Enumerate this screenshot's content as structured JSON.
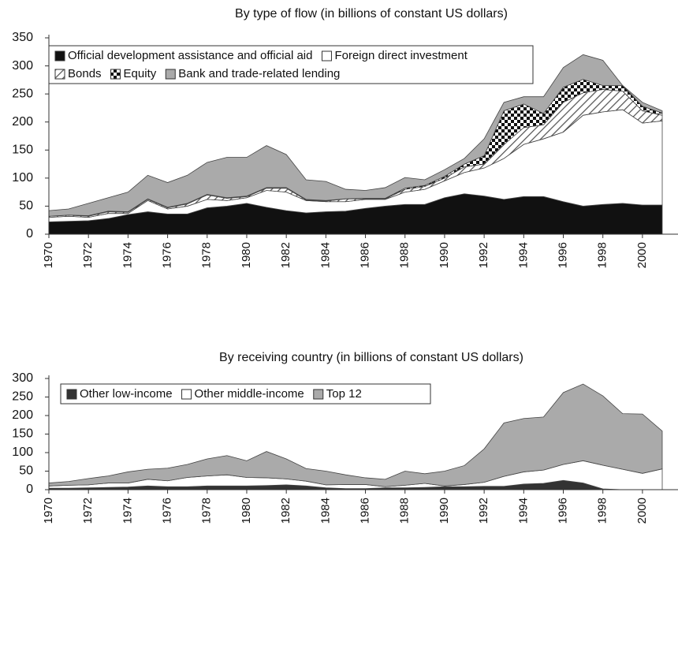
{
  "chart_data": [
    {
      "type": "stacked-area",
      "title": "By type of flow (in billions of constant US dollars)",
      "x": [
        1970,
        1971,
        1972,
        1973,
        1974,
        1975,
        1976,
        1977,
        1978,
        1979,
        1980,
        1981,
        1982,
        1983,
        1984,
        1985,
        1986,
        1987,
        1988,
        1989,
        1990,
        1991,
        1992,
        1993,
        1994,
        1995,
        1996,
        1997,
        1998,
        1999,
        2000,
        2001
      ],
      "xlim": [
        1970,
        2001
      ],
      "xticks": [
        1970,
        1972,
        1974,
        1976,
        1978,
        1980,
        1982,
        1984,
        1986,
        1988,
        1990,
        1992,
        1994,
        1996,
        1998,
        2000
      ],
      "ylim": [
        0,
        350
      ],
      "yticks": [
        0,
        50,
        100,
        150,
        200,
        250,
        300,
        350
      ],
      "series": [
        {
          "name": "Official development assistance and official aid",
          "color": "#111111",
          "values": [
            22,
            23,
            24,
            28,
            35,
            40,
            36,
            36,
            47,
            50,
            55,
            48,
            42,
            38,
            40,
            41,
            46,
            50,
            53,
            53,
            65,
            72,
            68,
            62,
            67,
            67,
            58,
            50,
            53,
            55,
            52,
            52
          ]
        },
        {
          "name": "Foreign direct investment",
          "color": "#ffffff",
          "values": [
            8,
            9,
            6,
            9,
            2,
            20,
            9,
            14,
            15,
            10,
            10,
            30,
            33,
            22,
            18,
            17,
            16,
            12,
            22,
            27,
            30,
            38,
            50,
            73,
            93,
            103,
            124,
            162,
            165,
            167,
            146,
            150
          ]
        },
        {
          "name": "Bonds",
          "color": "#ffffff",
          "pattern": "hatch",
          "values": [
            2,
            2,
            2,
            3,
            2,
            2,
            2,
            4,
            8,
            4,
            2,
            4,
            7,
            1,
            1,
            5,
            1,
            1,
            5,
            5,
            5,
            10,
            7,
            25,
            30,
            25,
            53,
            40,
            40,
            33,
            22,
            10
          ]
        },
        {
          "name": "Equity",
          "color": "#ffffff",
          "pattern": "checker",
          "values": [
            0,
            0,
            1,
            1,
            1,
            1,
            1,
            1,
            1,
            1,
            1,
            1,
            1,
            1,
            1,
            0,
            1,
            1,
            2,
            2,
            3,
            5,
            15,
            60,
            42,
            20,
            27,
            24,
            7,
            10,
            8,
            4
          ]
        },
        {
          "name": "Bank and trade-related lending",
          "color": "#aaaaaa",
          "values": [
            10,
            11,
            22,
            24,
            35,
            42,
            44,
            50,
            57,
            72,
            69,
            75,
            59,
            35,
            34,
            17,
            14,
            19,
            19,
            10,
            12,
            10,
            30,
            15,
            13,
            30,
            35,
            44,
            45,
            0,
            7,
            4
          ]
        }
      ]
    },
    {
      "type": "stacked-area",
      "title": "By receiving country (in billions of constant US dollars)",
      "x": [
        1970,
        1971,
        1972,
        1973,
        1974,
        1975,
        1976,
        1977,
        1978,
        1979,
        1980,
        1981,
        1982,
        1983,
        1984,
        1985,
        1986,
        1987,
        1988,
        1989,
        1990,
        1991,
        1992,
        1993,
        1994,
        1995,
        1996,
        1997,
        1998,
        1999,
        2000,
        2001
      ],
      "xlim": [
        1970,
        2001
      ],
      "xticks": [
        1970,
        1972,
        1974,
        1976,
        1978,
        1980,
        1982,
        1984,
        1986,
        1988,
        1990,
        1992,
        1994,
        1996,
        1998,
        2000
      ],
      "ylim": [
        0,
        300
      ],
      "yticks": [
        0,
        50,
        100,
        150,
        200,
        250,
        300
      ],
      "series": [
        {
          "name": "Other low-income",
          "color": "#333333",
          "values": [
            4,
            4,
            5,
            6,
            7,
            10,
            8,
            8,
            10,
            10,
            10,
            11,
            13,
            10,
            5,
            3,
            3,
            5,
            5,
            6,
            8,
            8,
            9,
            9,
            15,
            17,
            25,
            18,
            2,
            0,
            0,
            0
          ]
        },
        {
          "name": "Other middle-income",
          "color": "#ffffff",
          "values": [
            6,
            8,
            8,
            12,
            11,
            18,
            16,
            25,
            27,
            30,
            23,
            21,
            16,
            13,
            8,
            11,
            11,
            3,
            7,
            11,
            2,
            6,
            11,
            27,
            33,
            36,
            43,
            60,
            64,
            55,
            44,
            56
          ]
        },
        {
          "name": "Top 12",
          "color": "#aaaaaa",
          "values": [
            8,
            10,
            17,
            19,
            30,
            27,
            34,
            35,
            46,
            52,
            45,
            71,
            54,
            34,
            37,
            26,
            18,
            20,
            38,
            26,
            40,
            51,
            90,
            144,
            144,
            143,
            194,
            207,
            187,
            150,
            160,
            102
          ]
        }
      ]
    }
  ]
}
